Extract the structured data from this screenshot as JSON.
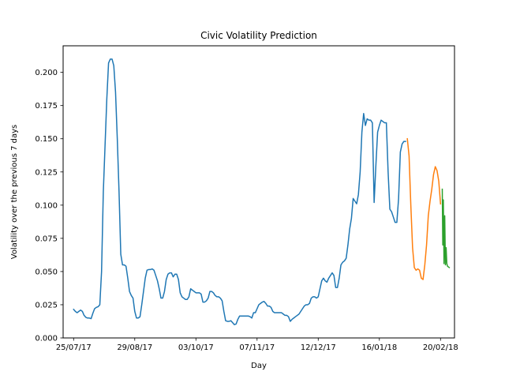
{
  "chart_data": {
    "type": "line",
    "title": "Civic Volatility Prediction",
    "xlabel": "Day",
    "ylabel": "Volatility over the previous 7 days",
    "x_start": "2017-07-20",
    "xlim": [
      "2017-07-19",
      "2018-02-28"
    ],
    "ylim": [
      0,
      0.22
    ],
    "grid": false,
    "x_ticks": [
      {
        "date": "2017-07-25",
        "label": "25/07/17"
      },
      {
        "date": "2017-08-29",
        "label": "29/08/17"
      },
      {
        "date": "2017-10-03",
        "label": "03/10/17"
      },
      {
        "date": "2017-11-07",
        "label": "07/11/17"
      },
      {
        "date": "2017-12-12",
        "label": "12/12/17"
      },
      {
        "date": "2018-01-16",
        "label": "16/01/18"
      },
      {
        "date": "2018-02-20",
        "label": "20/02/18"
      }
    ],
    "y_ticks": [
      {
        "value": 0.0,
        "label": "0.000"
      },
      {
        "value": 0.025,
        "label": "0.025"
      },
      {
        "value": 0.05,
        "label": "0.050"
      },
      {
        "value": 0.075,
        "label": "0.075"
      },
      {
        "value": 0.1,
        "label": "0.100"
      },
      {
        "value": 0.125,
        "label": "0.125"
      },
      {
        "value": 0.15,
        "label": "0.150"
      },
      {
        "value": 0.175,
        "label": "0.175"
      },
      {
        "value": 0.2,
        "label": "0.200"
      }
    ],
    "series": [
      {
        "color": "#1f77b4",
        "points": [
          [
            "2017-07-25",
            0.0215
          ],
          [
            "2017-07-26",
            0.02
          ],
          [
            "2017-07-27",
            0.019
          ],
          [
            "2017-07-28",
            0.02
          ],
          [
            "2017-07-29",
            0.021
          ],
          [
            "2017-07-30",
            0.02
          ],
          [
            "2017-07-31",
            0.017
          ],
          [
            "2017-08-01",
            0.0155
          ],
          [
            "2017-08-02",
            0.015
          ],
          [
            "2017-08-03",
            0.015
          ],
          [
            "2017-08-04",
            0.0145
          ],
          [
            "2017-08-05",
            0.0185
          ],
          [
            "2017-08-06",
            0.022
          ],
          [
            "2017-08-07",
            0.023
          ],
          [
            "2017-08-08",
            0.0235
          ],
          [
            "2017-08-09",
            0.025
          ],
          [
            "2017-08-10",
            0.05
          ],
          [
            "2017-08-11",
            0.11
          ],
          [
            "2017-08-12",
            0.145
          ],
          [
            "2017-08-13",
            0.18
          ],
          [
            "2017-08-14",
            0.207
          ],
          [
            "2017-08-15",
            0.21
          ],
          [
            "2017-08-16",
            0.21
          ],
          [
            "2017-08-17",
            0.205
          ],
          [
            "2017-08-18",
            0.185
          ],
          [
            "2017-08-19",
            0.15
          ],
          [
            "2017-08-20",
            0.11
          ],
          [
            "2017-08-21",
            0.063
          ],
          [
            "2017-08-22",
            0.055
          ],
          [
            "2017-08-23",
            0.055
          ],
          [
            "2017-08-24",
            0.054
          ],
          [
            "2017-08-25",
            0.045
          ],
          [
            "2017-08-26",
            0.035
          ],
          [
            "2017-08-27",
            0.032
          ],
          [
            "2017-08-28",
            0.03
          ],
          [
            "2017-08-29",
            0.02
          ],
          [
            "2017-08-30",
            0.015
          ],
          [
            "2017-08-31",
            0.015
          ],
          [
            "2017-09-01",
            0.016
          ],
          [
            "2017-09-02",
            0.025
          ],
          [
            "2017-09-03",
            0.035
          ],
          [
            "2017-09-04",
            0.045
          ],
          [
            "2017-09-05",
            0.051
          ],
          [
            "2017-09-06",
            0.0515
          ],
          [
            "2017-09-07",
            0.0515
          ],
          [
            "2017-09-08",
            0.052
          ],
          [
            "2017-09-09",
            0.051
          ],
          [
            "2017-09-10",
            0.047
          ],
          [
            "2017-09-11",
            0.043
          ],
          [
            "2017-09-12",
            0.037
          ],
          [
            "2017-09-13",
            0.03
          ],
          [
            "2017-09-14",
            0.03
          ],
          [
            "2017-09-15",
            0.035
          ],
          [
            "2017-09-16",
            0.044
          ],
          [
            "2017-09-17",
            0.048
          ],
          [
            "2017-09-18",
            0.049
          ],
          [
            "2017-09-19",
            0.049
          ],
          [
            "2017-09-20",
            0.046
          ],
          [
            "2017-09-21",
            0.048
          ],
          [
            "2017-09-22",
            0.048
          ],
          [
            "2017-09-23",
            0.044
          ],
          [
            "2017-09-24",
            0.034
          ],
          [
            "2017-09-25",
            0.031
          ],
          [
            "2017-09-26",
            0.03
          ],
          [
            "2017-09-27",
            0.029
          ],
          [
            "2017-09-28",
            0.029
          ],
          [
            "2017-09-29",
            0.031
          ],
          [
            "2017-09-30",
            0.037
          ],
          [
            "2017-10-01",
            0.036
          ],
          [
            "2017-10-02",
            0.035
          ],
          [
            "2017-10-03",
            0.034
          ],
          [
            "2017-10-04",
            0.034
          ],
          [
            "2017-10-05",
            0.034
          ],
          [
            "2017-10-06",
            0.033
          ],
          [
            "2017-10-07",
            0.027
          ],
          [
            "2017-10-08",
            0.027
          ],
          [
            "2017-10-09",
            0.028
          ],
          [
            "2017-10-10",
            0.03
          ],
          [
            "2017-10-11",
            0.035
          ],
          [
            "2017-10-12",
            0.035
          ],
          [
            "2017-10-13",
            0.034
          ],
          [
            "2017-10-14",
            0.032
          ],
          [
            "2017-10-15",
            0.031
          ],
          [
            "2017-10-16",
            0.031
          ],
          [
            "2017-10-17",
            0.03
          ],
          [
            "2017-10-18",
            0.028
          ],
          [
            "2017-10-19",
            0.02
          ],
          [
            "2017-10-20",
            0.013
          ],
          [
            "2017-10-21",
            0.0125
          ],
          [
            "2017-10-22",
            0.0125
          ],
          [
            "2017-10-23",
            0.013
          ],
          [
            "2017-10-24",
            0.0115
          ],
          [
            "2017-10-25",
            0.01
          ],
          [
            "2017-10-26",
            0.0105
          ],
          [
            "2017-10-27",
            0.014
          ],
          [
            "2017-10-28",
            0.0165
          ],
          [
            "2017-10-29",
            0.0165
          ],
          [
            "2017-10-30",
            0.0165
          ],
          [
            "2017-10-31",
            0.0165
          ],
          [
            "2017-11-01",
            0.0165
          ],
          [
            "2017-11-02",
            0.0165
          ],
          [
            "2017-11-03",
            0.016
          ],
          [
            "2017-11-04",
            0.015
          ],
          [
            "2017-11-05",
            0.019
          ],
          [
            "2017-11-06",
            0.019
          ],
          [
            "2017-11-07",
            0.022
          ],
          [
            "2017-11-08",
            0.025
          ],
          [
            "2017-11-09",
            0.026
          ],
          [
            "2017-11-10",
            0.027
          ],
          [
            "2017-11-11",
            0.0275
          ],
          [
            "2017-11-12",
            0.026
          ],
          [
            "2017-11-13",
            0.024
          ],
          [
            "2017-11-14",
            0.024
          ],
          [
            "2017-11-15",
            0.023
          ],
          [
            "2017-11-16",
            0.02
          ],
          [
            "2017-11-17",
            0.019
          ],
          [
            "2017-11-18",
            0.019
          ],
          [
            "2017-11-19",
            0.019
          ],
          [
            "2017-11-20",
            0.019
          ],
          [
            "2017-11-21",
            0.019
          ],
          [
            "2017-11-22",
            0.018
          ],
          [
            "2017-11-23",
            0.017
          ],
          [
            "2017-11-24",
            0.017
          ],
          [
            "2017-11-25",
            0.016
          ],
          [
            "2017-11-26",
            0.0125
          ],
          [
            "2017-11-27",
            0.014
          ],
          [
            "2017-11-28",
            0.015
          ],
          [
            "2017-11-29",
            0.016
          ],
          [
            "2017-11-30",
            0.017
          ],
          [
            "2017-12-01",
            0.018
          ],
          [
            "2017-12-02",
            0.02
          ],
          [
            "2017-12-03",
            0.022
          ],
          [
            "2017-12-04",
            0.024
          ],
          [
            "2017-12-05",
            0.025
          ],
          [
            "2017-12-06",
            0.025
          ],
          [
            "2017-12-07",
            0.026
          ],
          [
            "2017-12-08",
            0.03
          ],
          [
            "2017-12-09",
            0.031
          ],
          [
            "2017-12-10",
            0.031
          ],
          [
            "2017-12-11",
            0.03
          ],
          [
            "2017-12-12",
            0.031
          ],
          [
            "2017-12-13",
            0.037
          ],
          [
            "2017-12-14",
            0.043
          ],
          [
            "2017-12-15",
            0.045
          ],
          [
            "2017-12-16",
            0.043
          ],
          [
            "2017-12-17",
            0.042
          ],
          [
            "2017-12-18",
            0.045
          ],
          [
            "2017-12-19",
            0.047
          ],
          [
            "2017-12-20",
            0.049
          ],
          [
            "2017-12-21",
            0.047
          ],
          [
            "2017-12-22",
            0.038
          ],
          [
            "2017-12-23",
            0.038
          ],
          [
            "2017-12-24",
            0.045
          ],
          [
            "2017-12-25",
            0.055
          ],
          [
            "2017-12-26",
            0.057
          ],
          [
            "2017-12-27",
            0.058
          ],
          [
            "2017-12-28",
            0.06
          ],
          [
            "2017-12-29",
            0.07
          ],
          [
            "2017-12-30",
            0.082
          ],
          [
            "2017-12-31",
            0.09
          ],
          [
            "2018-01-01",
            0.105
          ],
          [
            "2018-01-02",
            0.103
          ],
          [
            "2018-01-03",
            0.101
          ],
          [
            "2018-01-04",
            0.108
          ],
          [
            "2018-01-05",
            0.125
          ],
          [
            "2018-01-06",
            0.155
          ],
          [
            "2018-01-07",
            0.169
          ],
          [
            "2018-01-08",
            0.16
          ],
          [
            "2018-01-09",
            0.165
          ],
          [
            "2018-01-10",
            0.164
          ],
          [
            "2018-01-11",
            0.164
          ],
          [
            "2018-01-12",
            0.162
          ],
          [
            "2018-01-13",
            0.102
          ],
          [
            "2018-01-14",
            0.13
          ],
          [
            "2018-01-15",
            0.155
          ],
          [
            "2018-01-16",
            0.16
          ],
          [
            "2018-01-17",
            0.164
          ],
          [
            "2018-01-18",
            0.163
          ],
          [
            "2018-01-19",
            0.162
          ],
          [
            "2018-01-20",
            0.162
          ],
          [
            "2018-01-21",
            0.125
          ],
          [
            "2018-01-22",
            0.097
          ],
          [
            "2018-01-23",
            0.095
          ],
          [
            "2018-01-24",
            0.091
          ],
          [
            "2018-01-25",
            0.087
          ],
          [
            "2018-01-26",
            0.087
          ],
          [
            "2018-01-27",
            0.105
          ],
          [
            "2018-01-28",
            0.14
          ],
          [
            "2018-01-29",
            0.146
          ],
          [
            "2018-01-30",
            0.148
          ],
          [
            "2018-01-31",
            0.148
          ]
        ]
      },
      {
        "color": "#ff7f0e",
        "points": [
          [
            "2018-02-01",
            0.15
          ],
          [
            "2018-02-02",
            0.137
          ],
          [
            "2018-02-03",
            0.1
          ],
          [
            "2018-02-04",
            0.068
          ],
          [
            "2018-02-05",
            0.053
          ],
          [
            "2018-02-06",
            0.051
          ],
          [
            "2018-02-07",
            0.052
          ],
          [
            "2018-02-08",
            0.051
          ],
          [
            "2018-02-09",
            0.045
          ],
          [
            "2018-02-10",
            0.044
          ],
          [
            "2018-02-11",
            0.055
          ],
          [
            "2018-02-12",
            0.07
          ],
          [
            "2018-02-13",
            0.092
          ],
          [
            "2018-02-14",
            0.103
          ],
          [
            "2018-02-15",
            0.112
          ],
          [
            "2018-02-16",
            0.123
          ],
          [
            "2018-02-17",
            0.129
          ],
          [
            "2018-02-18",
            0.126
          ],
          [
            "2018-02-19",
            0.118
          ],
          [
            "2018-02-20",
            0.101
          ]
        ]
      },
      {
        "color": "#2ca02c",
        "points": [
          [
            "2018-02-21",
            0.112
          ],
          [
            "2018-02-21.3",
            0.07
          ],
          [
            "2018-02-21.6",
            0.104
          ],
          [
            "2018-02-22",
            0.056
          ],
          [
            "2018-02-22.4",
            0.092
          ],
          [
            "2018-02-22.8",
            0.055
          ],
          [
            "2018-02-23.2",
            0.068
          ],
          [
            "2018-02-23.6",
            0.056
          ],
          [
            "2018-02-24",
            0.054
          ],
          [
            "2018-02-25",
            0.053
          ]
        ]
      }
    ]
  }
}
